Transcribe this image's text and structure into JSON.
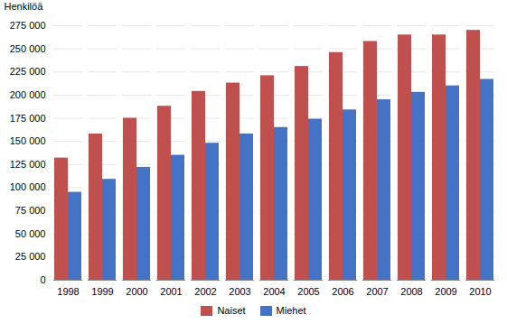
{
  "chart_data": {
    "type": "bar",
    "ylabel": "Henkilöä",
    "categories": [
      "1998",
      "1999",
      "2000",
      "2001",
      "2002",
      "2003",
      "2004",
      "2005",
      "2006",
      "2007",
      "2008",
      "2009",
      "2010"
    ],
    "series": [
      {
        "name": "Naiset",
        "color": "#C0504D",
        "values": [
          132000,
          158000,
          175000,
          188000,
          204000,
          213000,
          221000,
          231000,
          246000,
          258000,
          265000,
          265000,
          270000
        ]
      },
      {
        "name": "Miehet",
        "color": "#4472C4",
        "values": [
          95000,
          109000,
          122000,
          135000,
          148000,
          158000,
          165000,
          174000,
          184000,
          195000,
          203000,
          210000,
          217000
        ]
      }
    ],
    "ylim": [
      0,
      275000
    ],
    "yticks": [
      0,
      {
        "value": 25000,
        "label": "25 000"
      },
      {
        "value": 50000,
        "label": "50 000"
      },
      {
        "value": 75000,
        "label": "75 000"
      },
      {
        "value": 100000,
        "label": "100 000"
      },
      {
        "value": 125000,
        "label": "125 000"
      },
      {
        "value": 150000,
        "label": "150 000"
      },
      {
        "value": 175000,
        "label": "175 000"
      },
      {
        "value": 200000,
        "label": "200 000"
      },
      {
        "value": 225000,
        "label": "225 000"
      },
      {
        "value": 250000,
        "label": "250 000"
      },
      {
        "value": 275000,
        "label": "275 000"
      }
    ],
    "grid": true,
    "legend": "bottom"
  }
}
